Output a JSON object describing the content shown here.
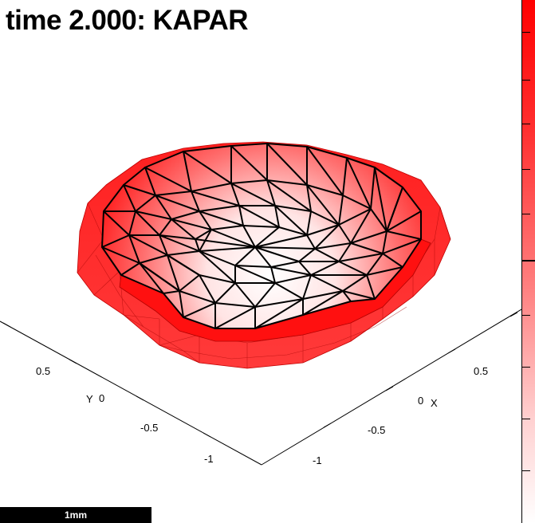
{
  "title": "time 2.000: KAPAR",
  "axes": {
    "y": {
      "label": "Y",
      "ticks": [
        "0.5",
        "0",
        "-0.5",
        "-1"
      ]
    },
    "x": {
      "label": "X",
      "ticks": [
        "0.5",
        "0",
        "-0.5",
        "-1"
      ]
    }
  },
  "scale_bar": {
    "label": "1mm"
  },
  "colors": {
    "surface": "#ff0000",
    "surface_highlight": "#ffffff",
    "mesh_edges": "#000000",
    "colorbar_top": "#ff0000",
    "colorbar_bottom": "#ffffff"
  }
}
